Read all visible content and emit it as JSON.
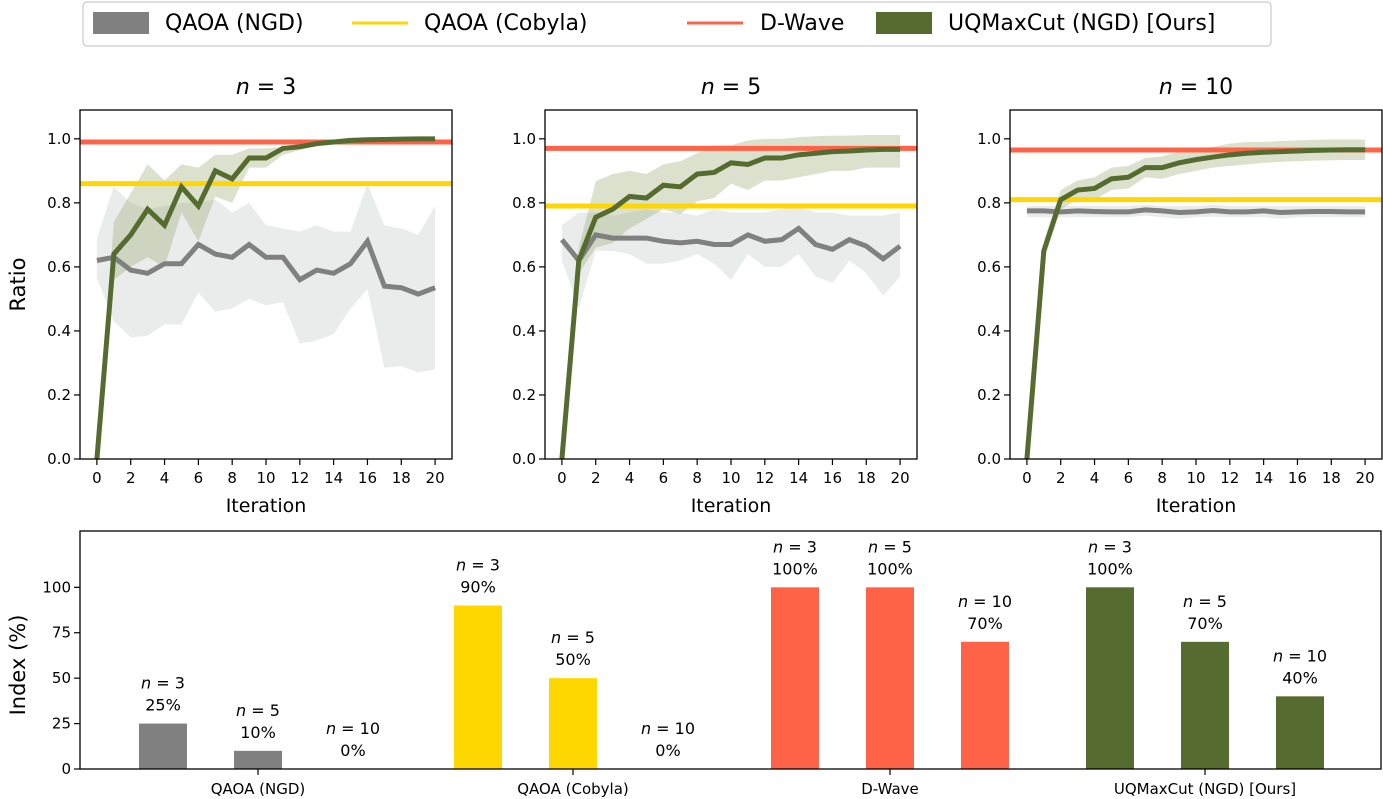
{
  "colors": {
    "qaoa_ngd": "#808080",
    "qaoa_cobyla": "#FFD700",
    "dwave": "#FF6347",
    "uqmaxcut": "#556B2F",
    "ngd_band": "#e8eaea",
    "uq_band": "#c9cfb6"
  },
  "legend": [
    "QAOA (NGD)",
    "QAOA (Cobyla)",
    "D-Wave",
    "UQMaxCut (NGD) [Ours]"
  ],
  "chart_data": [
    {
      "type": "line",
      "title_var": "n",
      "title_eq": " = ",
      "title_n": "3",
      "xlabel": "Iteration",
      "ylabel": "Ratio",
      "xlim": [
        -1,
        21
      ],
      "ylim": [
        0,
        1.09
      ],
      "xticks": [
        0,
        2,
        4,
        6,
        8,
        10,
        12,
        14,
        16,
        18,
        20
      ],
      "yticks": [
        "0.0",
        "0.2",
        "0.4",
        "0.6",
        "0.8",
        "1.0"
      ],
      "hlines": {
        "dwave": 0.99,
        "cobyla": 0.86
      },
      "ngd": {
        "mean": [
          0.62,
          0.63,
          0.59,
          0.58,
          0.61,
          0.61,
          0.67,
          0.64,
          0.63,
          0.67,
          0.63,
          0.63,
          0.56,
          0.59,
          0.58,
          0.61,
          0.68,
          0.54,
          0.535,
          0.515,
          0.535
        ],
        "upper": [
          0.69,
          0.85,
          0.8,
          0.78,
          0.79,
          0.8,
          0.8,
          0.81,
          0.77,
          0.8,
          0.73,
          0.72,
          0.71,
          0.73,
          0.71,
          0.71,
          0.86,
          0.73,
          0.72,
          0.7,
          0.79
        ],
        "lower": [
          0.565,
          0.43,
          0.38,
          0.385,
          0.42,
          0.42,
          0.52,
          0.46,
          0.47,
          0.5,
          0.48,
          0.49,
          0.36,
          0.37,
          0.39,
          0.47,
          0.53,
          0.285,
          0.29,
          0.27,
          0.28
        ]
      },
      "uq": {
        "mean": [
          0,
          0.64,
          0.7,
          0.78,
          0.73,
          0.85,
          0.79,
          0.9,
          0.875,
          0.94,
          0.94,
          0.97,
          0.975,
          0.985,
          0.99,
          0.995,
          0.997,
          0.998,
          0.999,
          1.0,
          1.0
        ],
        "upper": [
          0,
          0.74,
          0.83,
          0.92,
          0.87,
          0.92,
          0.91,
          0.95,
          0.95,
          0.97,
          0.97,
          0.975,
          0.985,
          0.99,
          0.995,
          1.0,
          1.0,
          1.0,
          1.0,
          1.003,
          1.003
        ],
        "lower": [
          0,
          0.56,
          0.6,
          0.63,
          0.6,
          0.77,
          0.68,
          0.82,
          0.8,
          0.91,
          0.91,
          0.95,
          0.965,
          0.98,
          0.985,
          0.99,
          0.994,
          0.996,
          0.997,
          0.997,
          0.997
        ]
      }
    },
    {
      "type": "line",
      "title_var": "n",
      "title_eq": " = ",
      "title_n": "5",
      "xlabel": "Iteration",
      "ylabel": "",
      "xlim": [
        -1,
        21
      ],
      "ylim": [
        0,
        1.09
      ],
      "xticks": [
        0,
        2,
        4,
        6,
        8,
        10,
        12,
        14,
        16,
        18,
        20
      ],
      "yticks": [
        "0.0",
        "0.2",
        "0.4",
        "0.6",
        "0.8",
        "1.0"
      ],
      "hlines": {
        "dwave": 0.97,
        "cobyla": 0.79
      },
      "ngd": {
        "mean": [
          0.685,
          0.62,
          0.7,
          0.69,
          0.69,
          0.69,
          0.68,
          0.675,
          0.68,
          0.67,
          0.67,
          0.7,
          0.68,
          0.685,
          0.72,
          0.67,
          0.655,
          0.685,
          0.665,
          0.625,
          0.665
        ],
        "upper": [
          0.73,
          0.77,
          0.77,
          0.76,
          0.77,
          0.78,
          0.77,
          0.77,
          0.76,
          0.78,
          0.77,
          0.77,
          0.77,
          0.78,
          0.79,
          0.77,
          0.77,
          0.76,
          0.76,
          0.76,
          0.77
        ],
        "lower": [
          0.62,
          0.47,
          0.65,
          0.65,
          0.64,
          0.61,
          0.61,
          0.62,
          0.64,
          0.61,
          0.56,
          0.64,
          0.6,
          0.6,
          0.64,
          0.57,
          0.55,
          0.62,
          0.58,
          0.51,
          0.57
        ]
      },
      "uq": {
        "mean": [
          0,
          0.62,
          0.755,
          0.78,
          0.82,
          0.815,
          0.855,
          0.85,
          0.89,
          0.895,
          0.925,
          0.92,
          0.94,
          0.94,
          0.95,
          0.955,
          0.96,
          0.962,
          0.965,
          0.967,
          0.967
        ],
        "upper": [
          0,
          0.66,
          0.867,
          0.89,
          0.9,
          0.89,
          0.92,
          0.93,
          0.955,
          0.98,
          0.98,
          0.995,
          1.0,
          1.0,
          1.005,
          1.008,
          1.01,
          1.01,
          1.012,
          1.012,
          1.012
        ],
        "lower": [
          0,
          0.58,
          0.66,
          0.675,
          0.72,
          0.75,
          0.78,
          0.765,
          0.805,
          0.815,
          0.86,
          0.84,
          0.87,
          0.87,
          0.88,
          0.89,
          0.9,
          0.9,
          0.91,
          0.91,
          0.91
        ]
      }
    },
    {
      "type": "line",
      "title_var": "n",
      "title_eq": " = ",
      "title_n": "10",
      "xlabel": "Iteration",
      "ylabel": "",
      "xlim": [
        -1,
        21
      ],
      "ylim": [
        0,
        1.09
      ],
      "xticks": [
        0,
        2,
        4,
        6,
        8,
        10,
        12,
        14,
        16,
        18,
        20
      ],
      "yticks": [
        "0.0",
        "0.2",
        "0.4",
        "0.6",
        "0.8",
        "1.0"
      ],
      "hlines": {
        "dwave": 0.965,
        "cobyla": 0.81
      },
      "ngd": {
        "mean": [
          0.775,
          0.775,
          0.772,
          0.775,
          0.773,
          0.772,
          0.772,
          0.778,
          0.775,
          0.77,
          0.772,
          0.776,
          0.772,
          0.772,
          0.775,
          0.77,
          0.772,
          0.773,
          0.773,
          0.772,
          0.772
        ],
        "upper": [
          0.79,
          0.79,
          0.79,
          0.79,
          0.79,
          0.79,
          0.79,
          0.795,
          0.79,
          0.79,
          0.79,
          0.795,
          0.79,
          0.79,
          0.79,
          0.79,
          0.79,
          0.79,
          0.79,
          0.79,
          0.79
        ],
        "lower": [
          0.755,
          0.755,
          0.755,
          0.755,
          0.755,
          0.755,
          0.755,
          0.76,
          0.755,
          0.75,
          0.755,
          0.757,
          0.755,
          0.755,
          0.755,
          0.75,
          0.755,
          0.755,
          0.755,
          0.755,
          0.755
        ]
      },
      "uq": {
        "mean": [
          0,
          0.65,
          0.81,
          0.84,
          0.845,
          0.875,
          0.88,
          0.91,
          0.91,
          0.925,
          0.935,
          0.943,
          0.95,
          0.955,
          0.958,
          0.96,
          0.962,
          0.964,
          0.965,
          0.966,
          0.966
        ],
        "upper": [
          0,
          0.68,
          0.84,
          0.87,
          0.88,
          0.91,
          0.915,
          0.94,
          0.945,
          0.96,
          0.97,
          0.975,
          0.985,
          0.99,
          0.99,
          0.993,
          0.995,
          0.997,
          0.998,
          0.998,
          0.998
        ],
        "lower": [
          0,
          0.62,
          0.78,
          0.81,
          0.81,
          0.84,
          0.845,
          0.88,
          0.875,
          0.89,
          0.9,
          0.91,
          0.915,
          0.92,
          0.925,
          0.928,
          0.93,
          0.932,
          0.933,
          0.934,
          0.934
        ]
      }
    },
    {
      "type": "bar",
      "ylabel": "Index (%)",
      "ylim": [
        0,
        131
      ],
      "yticks": [
        "0",
        "25",
        "50",
        "75",
        "100"
      ],
      "categories": [
        "QAOA (NGD)",
        "QAOA (Cobyla)",
        "D-Wave",
        "UQMaxCut (NGD) [Ours]"
      ],
      "series_keys": [
        "qaoa_ngd",
        "qaoa_cobyla",
        "dwave",
        "uqmaxcut"
      ],
      "bar_var": "n",
      "bars": [
        [
          {
            "n": "3",
            "value": 25,
            "label": "25%"
          },
          {
            "n": "5",
            "value": 10,
            "label": "10%"
          },
          {
            "n": "10",
            "value": 0,
            "label": "0%"
          }
        ],
        [
          {
            "n": "3",
            "value": 90,
            "label": "90%"
          },
          {
            "n": "5",
            "value": 50,
            "label": "50%"
          },
          {
            "n": "10",
            "value": 0,
            "label": "0%"
          }
        ],
        [
          {
            "n": "3",
            "value": 100,
            "label": "100%"
          },
          {
            "n": "5",
            "value": 100,
            "label": "100%"
          },
          {
            "n": "10",
            "value": 70,
            "label": "70%"
          }
        ],
        [
          {
            "n": "3",
            "value": 100,
            "label": "100%"
          },
          {
            "n": "5",
            "value": 70,
            "label": "70%"
          },
          {
            "n": "10",
            "value": 40,
            "label": "40%"
          }
        ]
      ]
    }
  ]
}
